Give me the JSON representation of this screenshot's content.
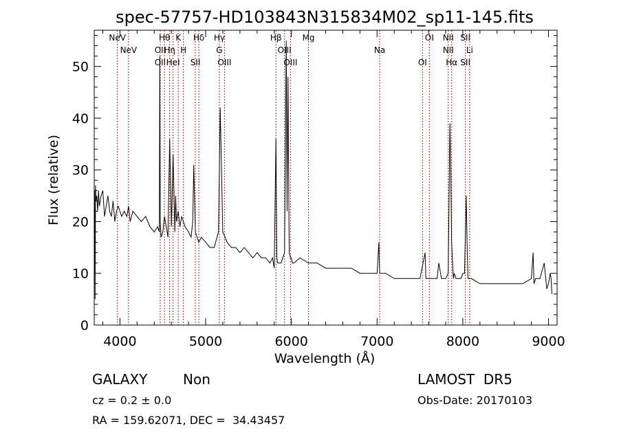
{
  "chart_data": {
    "type": "line",
    "title": "spec-57757-HD103843N315834M02_sp11-145.fits",
    "xlabel": "Wavelength (Å)",
    "ylabel": "Flux (relative)",
    "xlim": [
      3700,
      9100
    ],
    "ylim": [
      0,
      57
    ],
    "xticks": [
      4000,
      5000,
      6000,
      7000,
      8000,
      9000
    ],
    "yticks": [
      0,
      10,
      20,
      30,
      40,
      50
    ],
    "grid": false,
    "legend": "none",
    "line_color": "#000000",
    "marker_color": "#b22222",
    "series": [
      {
        "x": [
          3700,
          3705,
          3710,
          3715,
          3720,
          3730,
          3740,
          3750,
          3760,
          3780,
          3800,
          3820,
          3840,
          3860,
          3880,
          3900,
          3920,
          3940,
          3960,
          3980,
          4000,
          4020,
          4050,
          4080,
          4100,
          4120,
          4150,
          4200,
          4250,
          4300,
          4350,
          4400,
          4440,
          4460,
          4465,
          4470,
          4480,
          4500,
          4520,
          4540,
          4560,
          4580,
          4600,
          4620,
          4640,
          4650,
          4660,
          4680,
          4700,
          4720,
          4740,
          4760,
          4800,
          4830,
          4850,
          4861,
          4880,
          4900,
          4920,
          4950,
          5000,
          5050,
          5100,
          5150,
          5170,
          5200,
          5250,
          5300,
          5350,
          5400,
          5450,
          5500,
          5550,
          5600,
          5650,
          5700,
          5750,
          5780,
          5800,
          5820,
          5830,
          5840,
          5860,
          5880,
          5900,
          5920,
          5940,
          5950,
          5960,
          5975,
          5990,
          6000,
          6010,
          6030,
          6100,
          6200,
          6300,
          6400,
          6500,
          6600,
          6700,
          6800,
          6900,
          7000,
          7020,
          7030,
          7040,
          7100,
          7200,
          7300,
          7400,
          7500,
          7560,
          7570,
          7600,
          7700,
          7720,
          7750,
          7800,
          7830,
          7850,
          7860,
          7870,
          7880,
          7890,
          7900,
          7920,
          7950,
          7980,
          8000,
          8020,
          8040,
          8050,
          8060,
          8070,
          8100,
          8200,
          8300,
          8400,
          8500,
          8600,
          8700,
          8800,
          8820,
          8830,
          8850,
          8900,
          8950,
          8980,
          9000,
          9020,
          9030,
          9040
        ],
        "values": [
          12,
          26,
          5,
          27,
          24,
          25,
          22,
          26,
          23,
          25,
          26,
          21,
          23,
          25,
          22,
          21,
          24,
          20,
          22,
          23,
          22,
          21,
          22,
          21,
          23,
          20,
          22,
          21,
          20,
          21,
          19,
          18,
          19,
          18,
          52,
          20,
          17,
          18,
          21,
          19,
          17,
          36,
          19,
          33,
          18,
          25,
          20,
          22,
          19,
          21,
          20,
          19,
          18,
          17,
          20,
          31,
          18,
          17,
          16,
          17,
          16,
          15,
          15,
          18,
          42,
          18,
          16,
          15,
          15,
          14,
          15,
          14,
          13,
          14,
          13,
          13,
          12,
          13,
          11,
          36,
          13,
          12,
          12,
          12,
          13,
          14,
          55,
          22,
          48,
          14,
          13,
          13,
          12,
          12,
          13,
          12,
          12,
          11,
          11,
          11,
          11,
          10,
          10,
          10,
          16,
          10,
          10,
          10,
          9,
          9,
          9,
          9,
          14,
          9,
          9,
          9,
          12,
          9,
          9,
          10,
          39,
          29,
          16,
          12,
          9,
          10,
          9,
          9,
          9,
          10,
          10,
          25,
          16,
          9,
          9,
          9,
          8,
          8,
          8,
          8,
          8,
          8,
          9,
          14,
          8,
          9,
          9,
          12,
          7,
          8,
          10,
          9,
          6
        ]
      }
    ],
    "lines": [
      {
        "wavelength": 3970,
        "labels": [
          "NeV"
        ]
      },
      {
        "wavelength": 4100,
        "labels": [
          "NeV"
        ]
      },
      {
        "wavelength": 4470,
        "labels": [
          "OII",
          "OII"
        ]
      },
      {
        "wavelength": 4520,
        "labels": [
          "Hθ"
        ]
      },
      {
        "wavelength": 4580,
        "labels": [
          "Hη"
        ]
      },
      {
        "wavelength": 4620,
        "labels": [
          "HeI"
        ]
      },
      {
        "wavelength": 4680,
        "labels": [
          "K"
        ]
      },
      {
        "wavelength": 4740,
        "labels": [
          "H"
        ]
      },
      {
        "wavelength": 4880,
        "labels": [
          "SII"
        ]
      },
      {
        "wavelength": 4920,
        "labels": [
          "Hδ"
        ]
      },
      {
        "wavelength": 5160,
        "labels": [
          "G",
          "Hγ"
        ]
      },
      {
        "wavelength": 5220,
        "labels": [
          "OIII"
        ]
      },
      {
        "wavelength": 5820,
        "labels": [
          "Hβ"
        ]
      },
      {
        "wavelength": 5920,
        "labels": [
          "OIII"
        ]
      },
      {
        "wavelength": 5990,
        "labels": [
          "OIII"
        ]
      },
      {
        "wavelength": 6200,
        "labels": [
          "Mg"
        ]
      },
      {
        "wavelength": 7030,
        "labels": [
          "Na"
        ]
      },
      {
        "wavelength": 7530,
        "labels": [
          "OI"
        ]
      },
      {
        "wavelength": 7610,
        "labels": [
          "OI"
        ]
      },
      {
        "wavelength": 7830,
        "labels": [
          "NII",
          "NII"
        ]
      },
      {
        "wavelength": 7870,
        "labels": [
          "Hα"
        ]
      },
      {
        "wavelength": 8030,
        "labels": [
          "SII",
          "SII"
        ]
      },
      {
        "wavelength": 8080,
        "labels": [
          "Li"
        ]
      }
    ]
  },
  "info": {
    "class": "GALAXY",
    "subclass": "Non",
    "cz": "cz = 0.2 ± 0.0",
    "coords": "RA = 159.62071, DEC =  34.43457",
    "survey": "LAMOST  DR5",
    "obs_date": "Obs-Date: 20170103"
  }
}
